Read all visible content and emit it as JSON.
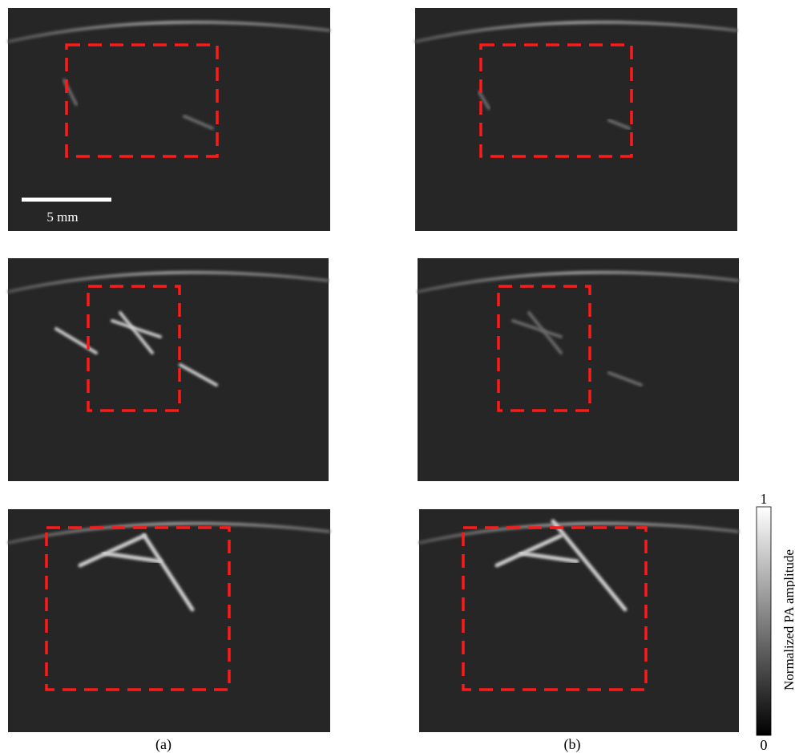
{
  "scale_bar": {
    "label": "5 mm"
  },
  "colorbar": {
    "label": "Normalized PA amplitude",
    "max": 1,
    "min": 0
  },
  "captions": [
    "(a)",
    "(b)"
  ]
}
